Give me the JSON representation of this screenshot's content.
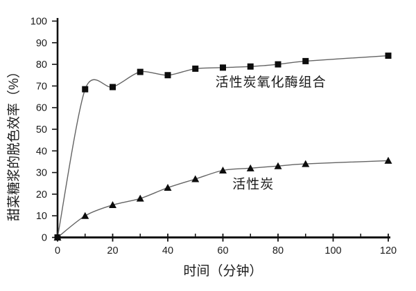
{
  "figure": {
    "background": "#ffffff"
  },
  "chart_data": {
    "type": "line",
    "title": "",
    "xlabel": "时间（分钟）",
    "ylabel": "甜菜糖浆的脱色效率（%）",
    "xlim": [
      0,
      120
    ],
    "ylim": [
      0,
      100
    ],
    "x_major_ticks": [
      0,
      20,
      40,
      60,
      80,
      100,
      120
    ],
    "x_minor_ticks": [
      10,
      30,
      50,
      70,
      90,
      110
    ],
    "y_ticks": [
      0,
      10,
      20,
      30,
      40,
      50,
      60,
      70,
      80,
      90,
      100
    ],
    "grid": false,
    "legend_position": "inline-annotations",
    "x": [
      0,
      10,
      20,
      30,
      40,
      50,
      60,
      70,
      80,
      90,
      120
    ],
    "series": [
      {
        "name": "活性炭氧化酶组合",
        "marker": "square",
        "values": [
          0,
          68.5,
          69.5,
          76.5,
          75,
          78,
          78.5,
          79,
          80,
          81.5,
          84
        ]
      },
      {
        "name": "活性炭",
        "marker": "triangle",
        "values": [
          0,
          10,
          15,
          18,
          23,
          27,
          31,
          32,
          33,
          34,
          35.5
        ]
      }
    ],
    "annotations": [
      {
        "text": "活性炭氧化酶组合",
        "x": 77.4,
        "y": 72
      },
      {
        "text": "活性炭",
        "x": 71,
        "y": 25
      }
    ],
    "colors": {
      "line": "#636363",
      "marker": "#0d0d0d",
      "axis": "#111111",
      "text": "#1a1a1a"
    }
  }
}
